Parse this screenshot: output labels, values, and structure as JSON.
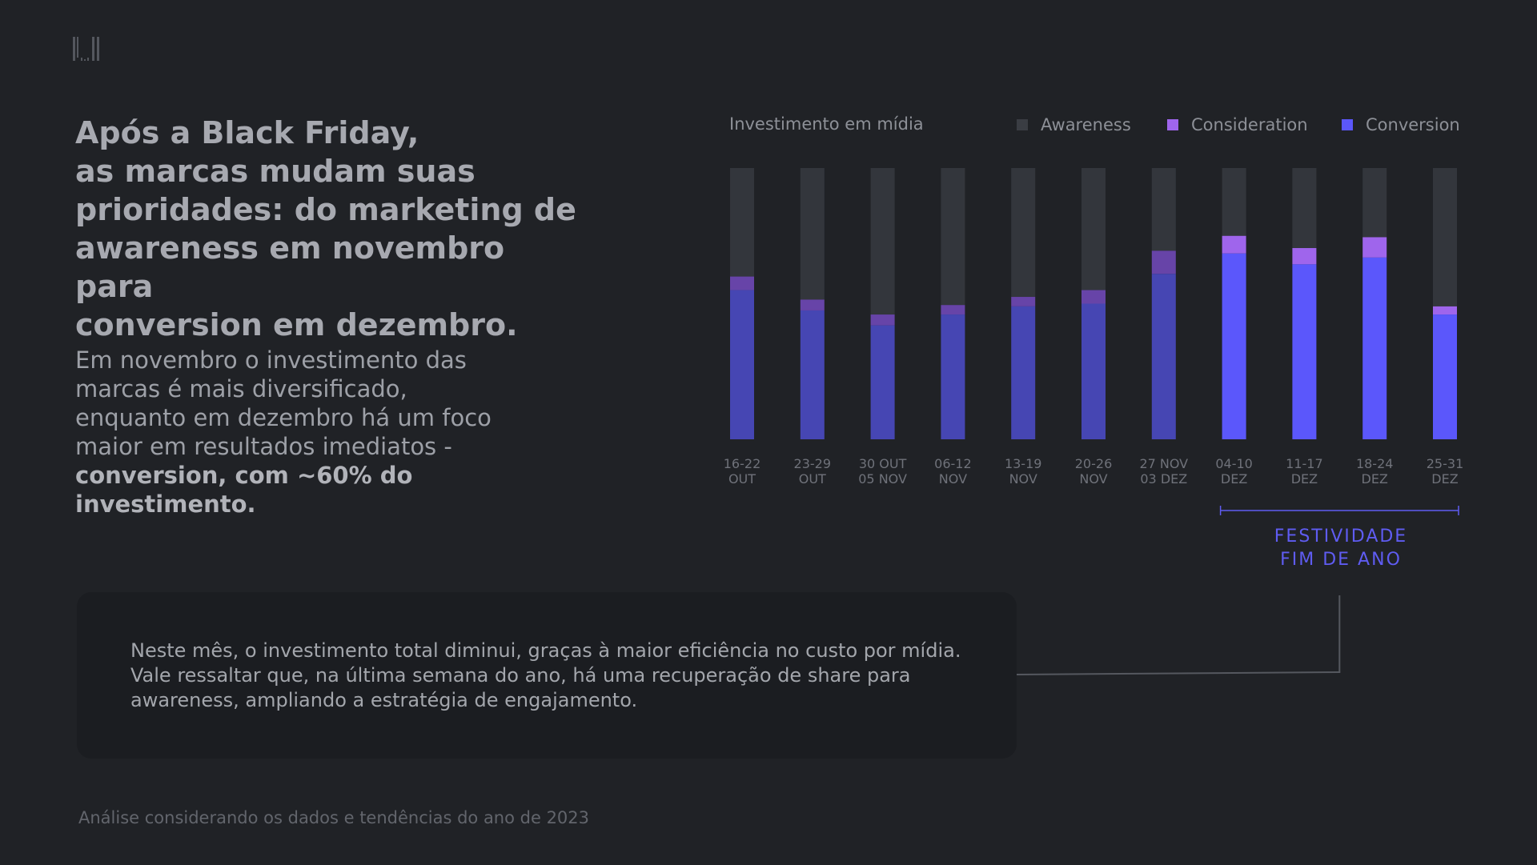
{
  "headline": {
    "lines": [
      "Após a Black Friday,",
      "as marcas mudam suas",
      "prioridades: do marketing de",
      "awareness em novembro para",
      "conversion em dezembro."
    ]
  },
  "body": {
    "text": "Em novembro o investimento das marcas é mais diversificado, enquanto em dezembro há um foco maior em resultados imediatos - ",
    "bold": "conversion, com ~60% do investimento."
  },
  "note": {
    "lines": [
      "Neste mês, o investimento total diminui, graças à maior eficiência no custo por mídia.",
      "Vale ressaltar que, na última semana do ano, há uma recuperação de share para",
      "awareness, ampliando a estratégia de engajamento."
    ]
  },
  "footer": "Análise considerando os dados e tendências do ano de 2023",
  "bracket": {
    "line1": "FESTIVIDADE",
    "line2": "FIM DE ANO"
  },
  "colors": {
    "awareness": "#33363c",
    "consideration_muted": "#6744a8",
    "conversion_muted": "#4646b3",
    "consideration_bright": "#9f65ec",
    "conversion_bright": "#5b57fb",
    "accent": "#5f5cf2"
  },
  "chart_data": {
    "type": "bar",
    "stacked": true,
    "title": "Investimento em mídia",
    "categories": [
      [
        "16-22",
        "OUT"
      ],
      [
        "23-29",
        "OUT"
      ],
      [
        "30 OUT",
        "05 NOV"
      ],
      [
        "06-12",
        "NOV"
      ],
      [
        "13-19",
        "NOV"
      ],
      [
        "20-26",
        "NOV"
      ],
      [
        "27 NOV",
        "03 DEZ"
      ],
      [
        "04-10",
        "DEZ"
      ],
      [
        "11-17",
        "DEZ"
      ],
      [
        "18-24",
        "DEZ"
      ],
      [
        "25-31",
        "DEZ"
      ]
    ],
    "highlight_from_index": 7,
    "series": [
      {
        "name": "Conversion",
        "values": [
          55,
          47.5,
          42,
          46,
          49,
          50,
          61,
          68.5,
          64.5,
          67,
          46
        ]
      },
      {
        "name": "Consideration",
        "values": [
          5,
          4,
          4,
          3.5,
          3.5,
          5,
          8.5,
          6.5,
          6,
          7.5,
          3
        ]
      },
      {
        "name": "Awareness",
        "values": [
          40,
          48.5,
          54,
          50.5,
          47.5,
          45,
          30.5,
          25,
          29.5,
          25.5,
          51
        ]
      }
    ],
    "ylim": [
      0,
      100
    ],
    "legend": "top-right",
    "grid": false
  }
}
